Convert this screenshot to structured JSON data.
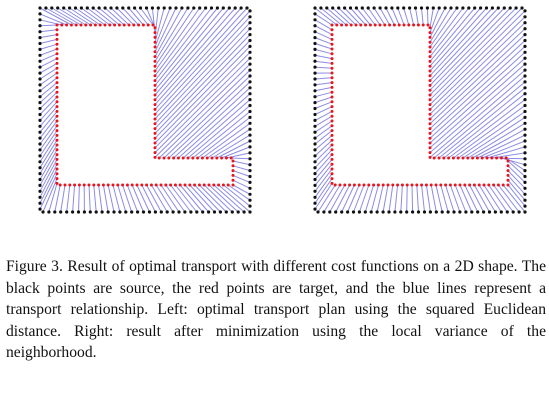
{
  "figure": {
    "caption": "Figure 3. Result of optimal transport with different cost functions on a 2D shape. The black points are source, the red points are target, and the blue lines represent a transport relationship. Left: optimal transport plan using the squared Euclidean distance. Right: result after minimization using the local variance of the neighborhood.",
    "colors": {
      "source_points": "#111111",
      "target_points": "#e8141e",
      "transport_lines": "#8c8ce6"
    },
    "panels": [
      {
        "id": "left",
        "method": "squared Euclidean distance"
      },
      {
        "id": "right",
        "method": "local variance of the neighborhood"
      }
    ]
  }
}
